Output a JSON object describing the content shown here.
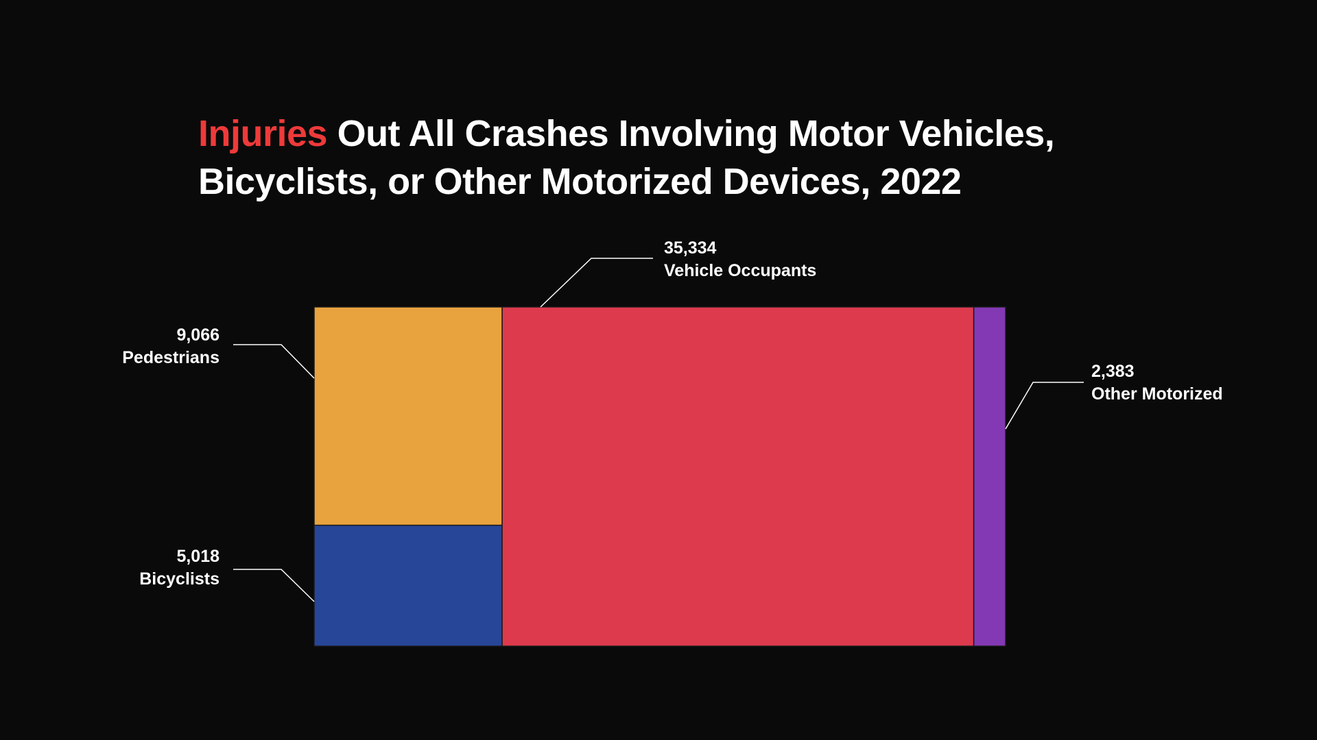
{
  "title": {
    "highlight": "Injuries",
    "rest_line1": " Out All Crashes Involving Motor Vehicles,",
    "rest_line2": "Bicyclists, or Other Motorized Devices, 2022",
    "highlight_color": "#ee3a3a"
  },
  "chart_data": {
    "type": "treemap",
    "title": "Injuries Out All Crashes Involving Motor Vehicles, Bicyclists, or Other Motorized Devices, 2022",
    "legend": "none",
    "grid": false,
    "values": [
      {
        "name": "Pedestrians",
        "value": 9066,
        "value_label": "9,066",
        "color": "#e8a33f"
      },
      {
        "name": "Bicyclists",
        "value": 5018,
        "value_label": "5,018",
        "color": "#274698"
      },
      {
        "name": "Vehicle Occupants",
        "value": 35334,
        "value_label": "35,334",
        "color": "#dd3a4d"
      },
      {
        "name": "Other Motorized",
        "value": 2383,
        "value_label": "2,383",
        "color": "#8339b3"
      }
    ]
  }
}
